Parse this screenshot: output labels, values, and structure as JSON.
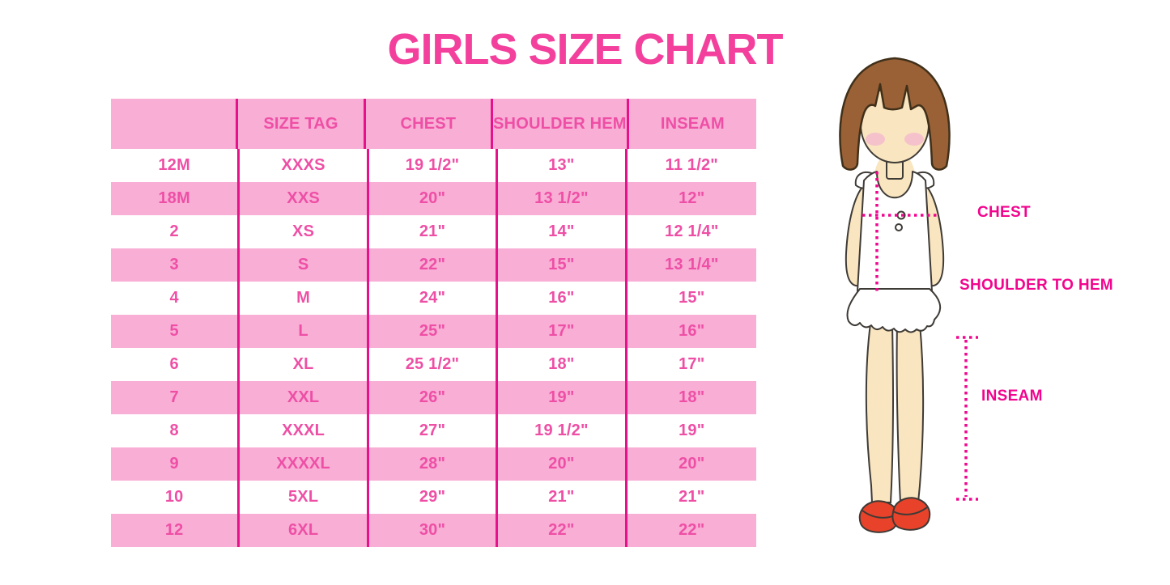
{
  "title": "GIRLS SIZE CHART",
  "chart_data": {
    "type": "table",
    "title": "GIRLS SIZE CHART",
    "columns": [
      "",
      "SIZE TAG",
      "CHEST",
      "SHOULDER HEM",
      "INSEAM"
    ],
    "rows": [
      [
        "12M",
        "XXXS",
        "19 1/2\"",
        "13\"",
        "11 1/2\""
      ],
      [
        "18M",
        "XXS",
        "20\"",
        "13 1/2\"",
        "12\""
      ],
      [
        "2",
        "XS",
        "21\"",
        "14\"",
        "12 1/4\""
      ],
      [
        "3",
        "S",
        "22\"",
        "15\"",
        "13 1/4\""
      ],
      [
        "4",
        "M",
        "24\"",
        "16\"",
        "15\""
      ],
      [
        "5",
        "L",
        "25\"",
        "17\"",
        "16\""
      ],
      [
        "6",
        "XL",
        "25 1/2\"",
        "18\"",
        "17\""
      ],
      [
        "7",
        "XXL",
        "26\"",
        "19\"",
        "18\""
      ],
      [
        "8",
        "XXXL",
        "27\"",
        "19 1/2\"",
        "19\""
      ],
      [
        "9",
        "XXXXL",
        "28\"",
        "20\"",
        "20\""
      ],
      [
        "10",
        "5XL",
        "29\"",
        "21\"",
        "21\""
      ],
      [
        "12",
        "6XL",
        "30\"",
        "22\"",
        "22\""
      ]
    ]
  },
  "diagram": {
    "labels": {
      "chest": "CHEST",
      "shoulder_to_hem": "SHOULDER TO HEM",
      "inseam": "INSEAM"
    }
  },
  "colors": {
    "title_pink": "#F4409D",
    "row_pink": "#F9AED6",
    "line_magenta": "#E5128B",
    "text_pink": "#EE4FA5",
    "label_magenta": "#F2058E",
    "hair_brown": "#9A6136",
    "hair_outline": "#40301A",
    "skin": "#F9E5BF",
    "cheek": "#F5C2CC",
    "shoe_red": "#E8432A",
    "outline": "#3E3A36",
    "white": "#FFFFFF"
  }
}
